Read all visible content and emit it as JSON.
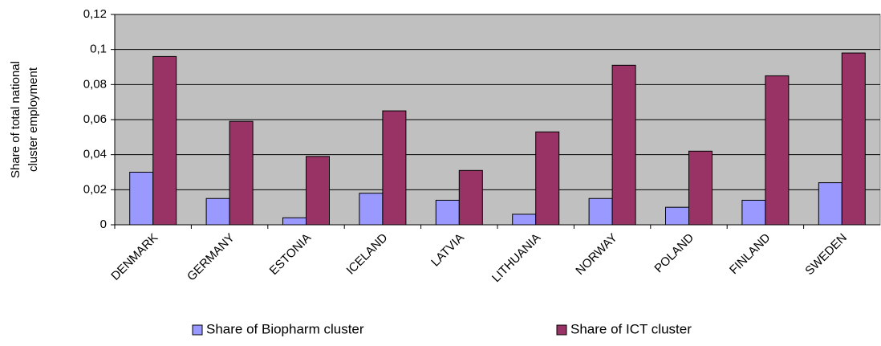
{
  "chart_data": {
    "type": "bar",
    "ylabel": [
      "Share of total national",
      "cluster employment"
    ],
    "categories": [
      "DENMARK",
      "GERMANY",
      "ESTONIA",
      "ICELAND",
      "LATVIA",
      "LITHUANIA",
      "NORWAY",
      "POLAND",
      "FINLAND",
      "SWEDEN"
    ],
    "series": [
      {
        "name": "Share of Biopharm cluster",
        "color": "#9999ff",
        "values": [
          0.03,
          0.015,
          0.004,
          0.018,
          0.014,
          0.006,
          0.015,
          0.01,
          0.014,
          0.024
        ]
      },
      {
        "name": "Share of ICT cluster",
        "color": "#993366",
        "values": [
          0.096,
          0.059,
          0.039,
          0.065,
          0.031,
          0.053,
          0.091,
          0.042,
          0.085,
          0.098
        ]
      }
    ],
    "ylim": [
      0,
      0.12
    ],
    "yticks": [
      0,
      {
        "value": 0.02,
        "label": "0,02"
      },
      {
        "value": 0.04,
        "label": "0,04"
      },
      {
        "value": 0.06,
        "label": "0,06"
      },
      {
        "value": 0.08,
        "label": "0,08"
      },
      {
        "value": 0.1,
        "label": "0,1"
      },
      {
        "value": 0.12,
        "label": "0,12"
      }
    ],
    "grid": true,
    "legend": "bottom"
  }
}
